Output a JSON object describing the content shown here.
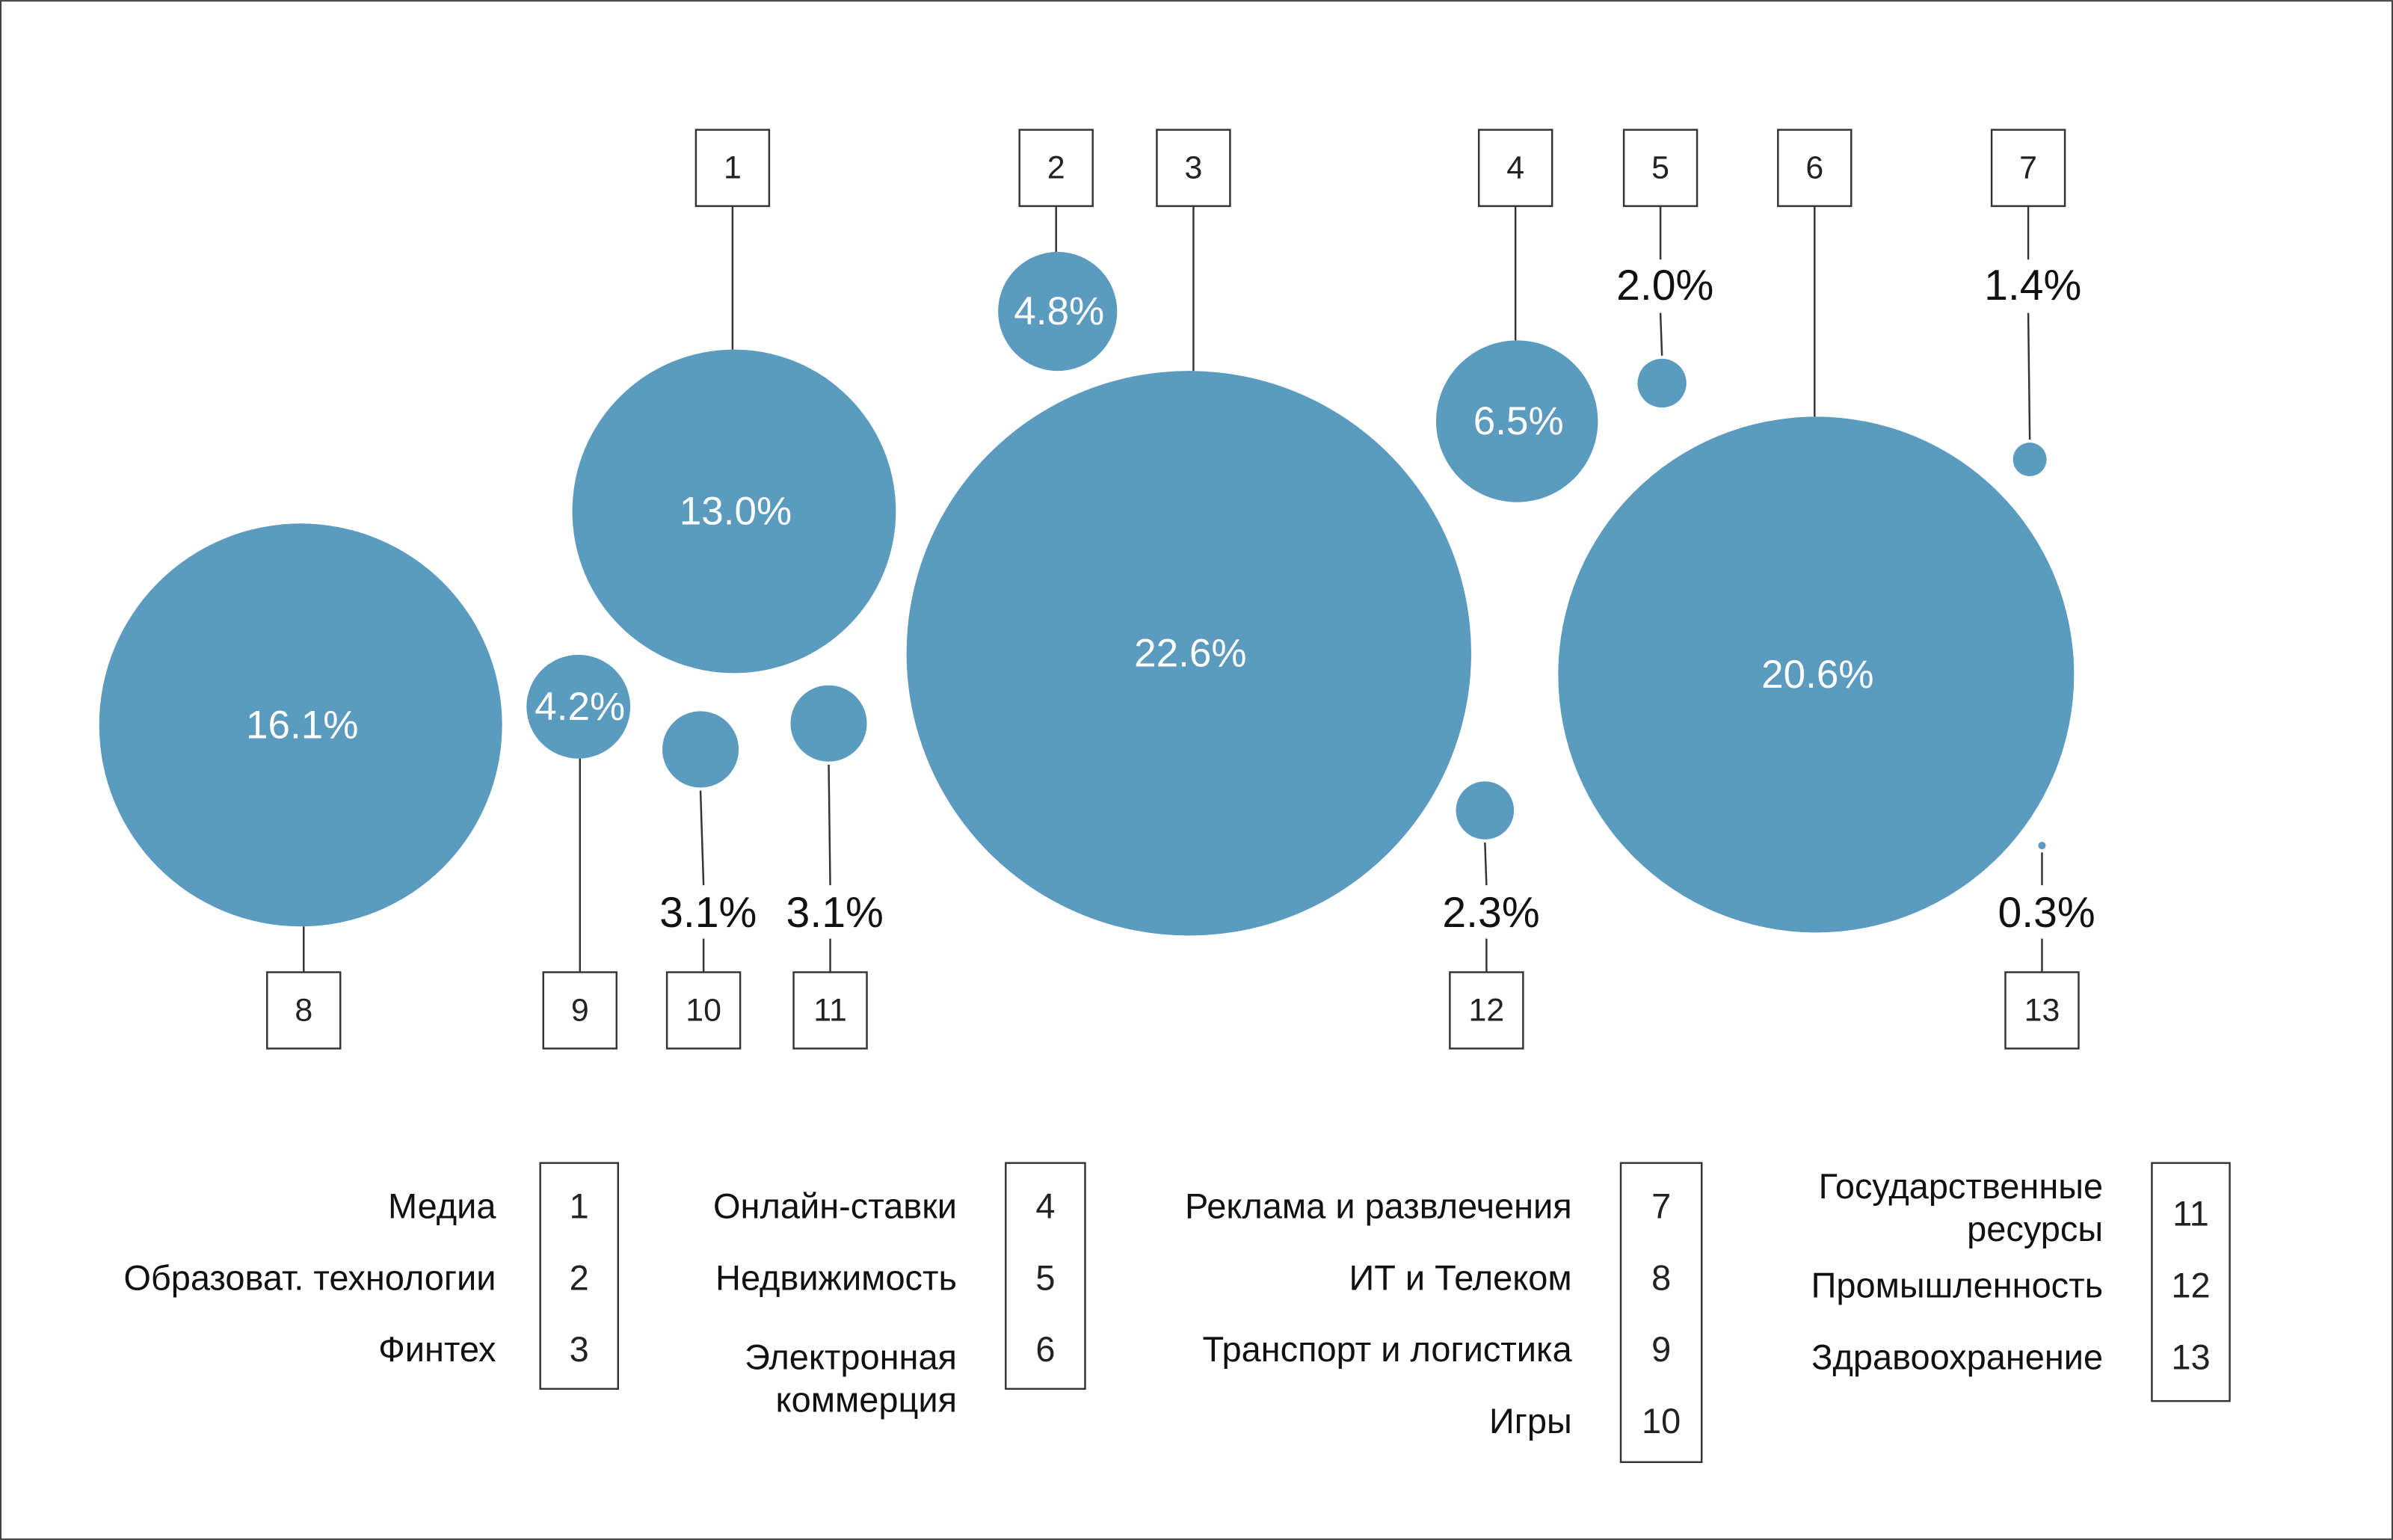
{
  "chart_data": {
    "type": "bubble",
    "title": "",
    "color": "#5b9bbf",
    "series": [
      {
        "id": "1",
        "name": "Медиа",
        "label": "13.0%",
        "value": 13.0
      },
      {
        "id": "2",
        "name": "Образоват. технологии",
        "label": "4.8%",
        "value": 4.8
      },
      {
        "id": "3",
        "name": "Финтех",
        "label": "22.6%",
        "value": 22.6
      },
      {
        "id": "4",
        "name": "Онлайн-ставки",
        "label": "6.5%",
        "value": 6.5
      },
      {
        "id": "5",
        "name": "Недвижимость",
        "label": "2.0%",
        "value": 2.0
      },
      {
        "id": "6",
        "name": "Электронная коммерция",
        "label": "20.6%",
        "value": 20.6
      },
      {
        "id": "7",
        "name": "Реклама и развлечения",
        "label": "1.4%",
        "value": 1.4
      },
      {
        "id": "8",
        "name": "ИТ и Телеком",
        "label": "16.1%",
        "value": 16.1
      },
      {
        "id": "9",
        "name": "Транспорт и логистика",
        "label": "4.2%",
        "value": 4.2
      },
      {
        "id": "10",
        "name": "Игры",
        "label": "3.1%",
        "value": 3.1
      },
      {
        "id": "11",
        "name": "Государственные ресурсы",
        "label": "3.1%",
        "value": 3.1
      },
      {
        "id": "12",
        "name": "Промышленность",
        "label": "2.3%",
        "value": 2.3
      },
      {
        "id": "13",
        "name": "Здравоохранение",
        "label": "0.3%",
        "value": 0.3
      }
    ],
    "legend": {
      "placement": "bottom",
      "columns": [
        [
          {
            "id": "1",
            "lines": [
              "Медиа"
            ]
          },
          {
            "id": "2",
            "lines": [
              "Образоват. технологии"
            ]
          },
          {
            "id": "3",
            "lines": [
              "Финтех"
            ]
          }
        ],
        [
          {
            "id": "4",
            "lines": [
              "Онлайн-ставки"
            ]
          },
          {
            "id": "5",
            "lines": [
              "Недвижимость"
            ]
          },
          {
            "id": "6",
            "lines": [
              "Электронная",
              "коммерция"
            ]
          }
        ],
        [
          {
            "id": "7",
            "lines": [
              "Реклама и развлечения"
            ]
          },
          {
            "id": "8",
            "lines": [
              "ИТ и Телеком"
            ]
          },
          {
            "id": "9",
            "lines": [
              "Транспорт и логистика"
            ]
          },
          {
            "id": "10",
            "lines": [
              "Игры"
            ]
          }
        ],
        [
          {
            "id": "11",
            "lines": [
              "Государственные",
              "ресурсы"
            ]
          },
          {
            "id": "12",
            "lines": [
              "Промышленность"
            ]
          },
          {
            "id": "13",
            "lines": [
              "Здравоохранение"
            ]
          }
        ]
      ]
    }
  }
}
